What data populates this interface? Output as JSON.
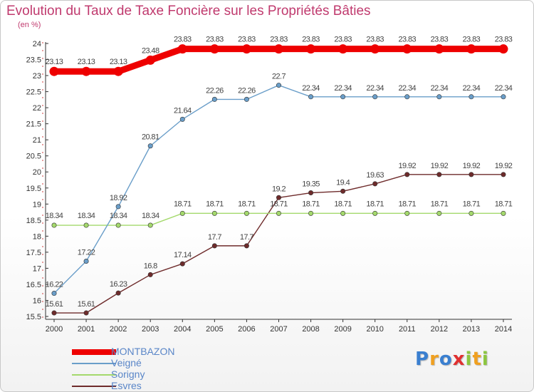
{
  "chart_data": {
    "type": "line",
    "title": "Evolution du Taux de Taxe Foncière sur les Propriétés Bâties",
    "subtitle": "(en %)",
    "xlabel": "",
    "ylabel": "",
    "x": [
      "2000",
      "2001",
      "2002",
      "2003",
      "2004",
      "2005",
      "2006",
      "2007",
      "2008",
      "2009",
      "2010",
      "2011",
      "2012",
      "2013",
      "2014"
    ],
    "ylim": [
      15.5,
      24
    ],
    "yticks": [
      "15.5",
      "16",
      "16.5",
      "17",
      "17.5",
      "18",
      "18.5",
      "19",
      "19.5",
      "20",
      "20.5",
      "21",
      "21.5",
      "22",
      "22.5",
      "23",
      "23.5",
      "24"
    ],
    "grid": false,
    "legend_position": "bottom-left",
    "series": [
      {
        "name": "MONTBAZON",
        "color": "#ee0000",
        "values": [
          23.13,
          23.13,
          23.13,
          23.48,
          23.83,
          23.83,
          23.83,
          23.83,
          23.83,
          23.83,
          23.83,
          23.83,
          23.83,
          23.83,
          23.83
        ]
      },
      {
        "name": "Veigné",
        "color": "#6a9ec9",
        "values": [
          16.22,
          17.22,
          18.92,
          20.81,
          21.64,
          22.26,
          22.26,
          22.7,
          22.34,
          22.34,
          22.34,
          22.34,
          22.34,
          22.34,
          22.34
        ]
      },
      {
        "name": "Sorigny",
        "color": "#a4d96c",
        "values": [
          18.34,
          18.34,
          18.34,
          18.34,
          18.71,
          18.71,
          18.71,
          18.71,
          18.71,
          18.71,
          18.71,
          18.71,
          18.71,
          18.71,
          18.71
        ]
      },
      {
        "name": "Esvres",
        "color": "#6e2b2b",
        "values": [
          15.61,
          15.61,
          16.23,
          16.8,
          17.14,
          17.7,
          17.7,
          19.2,
          19.35,
          19.4,
          19.63,
          19.92,
          19.92,
          19.92,
          19.92
        ]
      }
    ],
    "data_labels": {
      "MONTBAZON": [
        "23.13",
        "23.13",
        "23.13",
        "23.48",
        "23.83",
        "23.83",
        "23.83",
        "23.83",
        "23.83",
        "23.83",
        "23.83",
        "23.83",
        "23.83",
        "23.83",
        "23.83"
      ],
      "Veigné": [
        "16.22",
        "17.22",
        "18.92",
        "20.81",
        "21.64",
        "22.26",
        "22.26",
        "22.7",
        "22.34",
        "22.34",
        "22.34",
        "22.34",
        "22.34",
        "22.34",
        "22.34"
      ],
      "Sorigny": [
        "18.34",
        "18.34",
        "18.34",
        "18.34",
        "18.71",
        "18.71",
        "18.71",
        "18.71",
        "18.71",
        "18.71",
        "18.71",
        "18.71",
        "18.71",
        "18.71",
        "18.71"
      ],
      "Esvres": [
        "15.61",
        "15.61",
        "16.23",
        "16.8",
        "17.14",
        "17.7",
        "17.7",
        "19.2",
        "19.35",
        "19.4",
        "19.63",
        "19.92",
        "19.92",
        "19.92",
        "19.92"
      ]
    }
  },
  "logo": {
    "letters": [
      "P",
      "r",
      "o",
      "x",
      "i",
      "t",
      "i"
    ],
    "colors": [
      "#3a7fd0",
      "#f0a020",
      "#3a7fd0",
      "#e03030",
      "#8cc63f",
      "#f0a020",
      "#8cc63f"
    ]
  }
}
